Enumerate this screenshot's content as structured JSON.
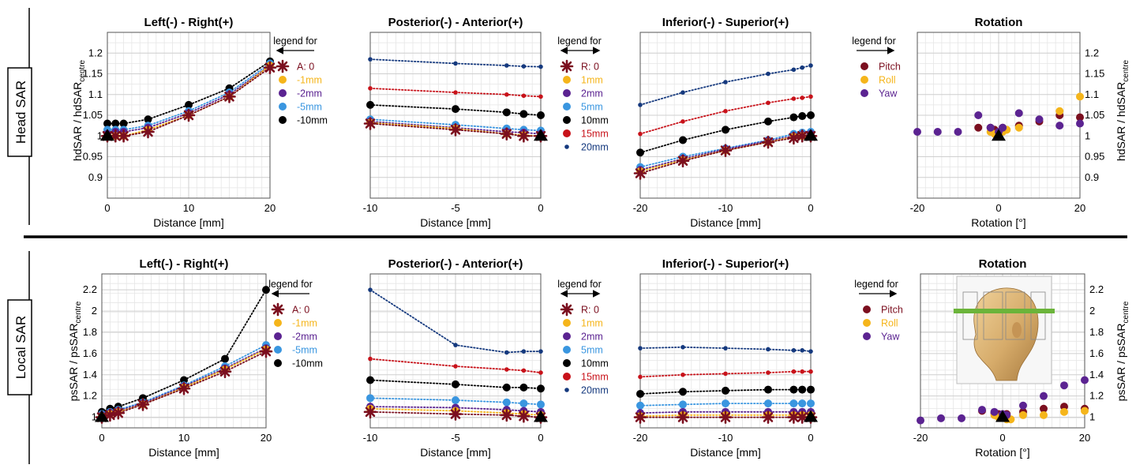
{
  "rows": [
    {
      "label": "Head SAR"
    },
    {
      "label": "Local SAR"
    }
  ],
  "ylabels": {
    "head": "hdSAR / hdSAR",
    "head_sub": "centre",
    "local": "psSAR / psSAR",
    "local_sub": "centre"
  },
  "legend_title": "legend for",
  "colors": {
    "0": "#7b0f1f",
    "1": "#f5b51b",
    "2": "#5b2391",
    "5": "#3a96e0",
    "10": "#000000",
    "15": "#c8121a",
    "20": "#15397e"
  },
  "rot_colors": {
    "Pitch": "#7b0f1f",
    "Roll": "#f5b51b",
    "Yaw": "#5b2391"
  },
  "chart_data": [
    {
      "type": "line",
      "row": 0,
      "title": "Left(-) - Right(+)",
      "xlabel": "Distance [mm]",
      "xlim": [
        0,
        20
      ],
      "ylim": [
        0.85,
        1.25
      ],
      "xticks": [
        "0",
        "10",
        "20"
      ],
      "yticks": [
        "0.9",
        "0.95",
        "1",
        "1.05",
        "1.1",
        "1.15",
        "1.2"
      ],
      "legend": {
        "side": "right",
        "arrow": "left",
        "entries": [
          {
            "label": "A: 0",
            "ckey": "0",
            "marker": "star"
          },
          {
            "label": "-1mm",
            "ckey": "1",
            "marker": "dot"
          },
          {
            "label": "-2mm",
            "ckey": "2",
            "marker": "dot"
          },
          {
            "label": "-5mm",
            "ckey": "5",
            "marker": "dot"
          },
          {
            "label": "-10mm",
            "ckey": "10",
            "marker": "dot"
          }
        ]
      },
      "x": [
        0,
        1,
        2,
        5,
        10,
        15,
        20
      ],
      "series": [
        {
          "ckey": "10",
          "marker": "dot",
          "values": [
            1.03,
            1.03,
            1.03,
            1.04,
            1.075,
            1.115,
            1.18
          ]
        },
        {
          "ckey": "5",
          "marker": "dot",
          "values": [
            1.015,
            1.015,
            1.015,
            1.025,
            1.06,
            1.105,
            1.175
          ]
        },
        {
          "ckey": "2",
          "marker": "dot",
          "values": [
            1.005,
            1.01,
            1.01,
            1.02,
            1.055,
            1.1,
            1.17
          ]
        },
        {
          "ckey": "1",
          "marker": "dot",
          "values": [
            1.0,
            1.0,
            1.0,
            1.015,
            1.05,
            1.095,
            1.17
          ]
        },
        {
          "ckey": "0",
          "marker": "star",
          "values": [
            1.0,
            1.0,
            1.0,
            1.01,
            1.05,
            1.095,
            1.165
          ]
        }
      ],
      "origin": {
        "x": 0,
        "y": 1.0
      }
    },
    {
      "type": "line",
      "row": 0,
      "title": "Posterior(-) - Anterior(+)",
      "xlabel": "Distance [mm]",
      "xlim": [
        -10,
        0
      ],
      "ylim": [
        0.85,
        1.25
      ],
      "xticks": [
        "-10",
        "-5",
        "0"
      ],
      "yticks": [],
      "legend": {
        "side": "right",
        "arrow": "both",
        "entries": [
          {
            "label": "R: 0",
            "ckey": "0",
            "marker": "star"
          },
          {
            "label": "1mm",
            "ckey": "1",
            "marker": "dot"
          },
          {
            "label": "2mm",
            "ckey": "2",
            "marker": "dot"
          },
          {
            "label": "5mm",
            "ckey": "5",
            "marker": "dot"
          },
          {
            "label": "10mm",
            "ckey": "10",
            "marker": "dot"
          },
          {
            "label": "15mm",
            "ckey": "15",
            "marker": "dot"
          },
          {
            "label": "20mm",
            "ckey": "20",
            "marker": "small"
          }
        ]
      },
      "x": [
        -10,
        -5,
        -2,
        -1,
        0
      ],
      "series": [
        {
          "ckey": "20",
          "marker": "small",
          "values": [
            1.185,
            1.175,
            1.17,
            1.168,
            1.167
          ]
        },
        {
          "ckey": "15",
          "marker": "small",
          "values": [
            1.115,
            1.105,
            1.1,
            1.097,
            1.095
          ]
        },
        {
          "ckey": "10",
          "marker": "dot",
          "values": [
            1.075,
            1.065,
            1.057,
            1.053,
            1.05
          ]
        },
        {
          "ckey": "5",
          "marker": "dot",
          "values": [
            1.04,
            1.027,
            1.018,
            1.015,
            1.013
          ]
        },
        {
          "ckey": "2",
          "marker": "dot",
          "values": [
            1.035,
            1.02,
            1.01,
            1.008,
            1.005
          ]
        },
        {
          "ckey": "1",
          "marker": "dot",
          "values": [
            1.032,
            1.018,
            1.005,
            1.002,
            1.0
          ]
        },
        {
          "ckey": "0",
          "marker": "star",
          "values": [
            1.03,
            1.015,
            1.005,
            1.0,
            1.0
          ]
        }
      ],
      "origin": {
        "x": 0,
        "y": 1.0
      }
    },
    {
      "type": "line",
      "row": 0,
      "title": "Inferior(-) - Superior(+)",
      "xlabel": "Distance [mm]",
      "xlim": [
        -20,
        0
      ],
      "ylim": [
        0.85,
        1.25
      ],
      "xticks": [
        "-20",
        "-10",
        "0"
      ],
      "yticks": [],
      "legend": null,
      "x": [
        -20,
        -15,
        -10,
        -5,
        -2,
        -1,
        0
      ],
      "series": [
        {
          "ckey": "20",
          "marker": "small",
          "values": [
            1.075,
            1.105,
            1.13,
            1.15,
            1.16,
            1.165,
            1.17
          ]
        },
        {
          "ckey": "15",
          "marker": "small",
          "values": [
            1.005,
            1.035,
            1.06,
            1.08,
            1.09,
            1.092,
            1.095
          ]
        },
        {
          "ckey": "10",
          "marker": "dot",
          "values": [
            0.96,
            0.99,
            1.015,
            1.035,
            1.045,
            1.048,
            1.05
          ]
        },
        {
          "ckey": "5",
          "marker": "dot",
          "values": [
            0.925,
            0.95,
            0.97,
            0.99,
            1.005,
            1.008,
            1.01
          ]
        },
        {
          "ckey": "2",
          "marker": "dot",
          "values": [
            0.918,
            0.945,
            0.968,
            0.988,
            1.0,
            1.003,
            1.005
          ]
        },
        {
          "ckey": "1",
          "marker": "dot",
          "values": [
            0.915,
            0.942,
            0.965,
            0.985,
            0.998,
            1.0,
            1.0
          ]
        },
        {
          "ckey": "0",
          "marker": "star",
          "values": [
            0.91,
            0.94,
            0.965,
            0.985,
            0.995,
            1.0,
            1.0
          ]
        }
      ],
      "origin": {
        "x": 0,
        "y": 1.0
      }
    },
    {
      "type": "scatter",
      "row": 0,
      "title": "Rotation",
      "xlabel": "Rotation [°]",
      "xlim": [
        -20,
        20
      ],
      "ylim": [
        0.85,
        1.25
      ],
      "xticks": [
        "-20",
        "0",
        "20"
      ],
      "yticks": [
        "0.9",
        "0.95",
        "1",
        "1.05",
        "1.1",
        "1.15",
        "1.2"
      ],
      "yaxis_side": "right",
      "legend": {
        "side": "left",
        "arrow": "right",
        "entries": [
          {
            "label": "Pitch",
            "ckey": "Pitch",
            "marker": "dot"
          },
          {
            "label": "Roll",
            "ckey": "Roll",
            "marker": "dot"
          },
          {
            "label": "Yaw",
            "ckey": "Yaw",
            "marker": "dot"
          }
        ]
      },
      "series": [
        {
          "name": "Pitch",
          "x": [
            -5,
            -2,
            -1,
            1,
            5,
            10,
            15,
            20
          ],
          "values": [
            1.02,
            1.02,
            1.015,
            1.02,
            1.025,
            1.035,
            1.05,
            1.045
          ]
        },
        {
          "name": "Roll",
          "x": [
            -2,
            -1,
            1,
            2,
            5,
            15,
            20
          ],
          "values": [
            1.01,
            1.005,
            1.01,
            1.015,
            1.02,
            1.06,
            1.095
          ]
        },
        {
          "name": "Yaw",
          "x": [
            -20,
            -15,
            -10,
            -5,
            -2,
            0,
            1,
            5,
            10,
            15,
            20
          ],
          "values": [
            1.01,
            1.01,
            1.01,
            1.05,
            1.02,
            1.01,
            1.02,
            1.055,
            1.04,
            1.025,
            1.03
          ]
        }
      ],
      "origin": {
        "x": 0,
        "y": 1.0
      }
    },
    {
      "type": "line",
      "row": 1,
      "title": "Left(-) - Right(+)",
      "xlabel": "Distance [mm]",
      "xlim": [
        0,
        20
      ],
      "ylim": [
        0.9,
        2.35
      ],
      "xticks": [
        "0",
        "10",
        "20"
      ],
      "yticks": [
        "1",
        "1.2",
        "1.4",
        "1.6",
        "1.8",
        "2",
        "2.2"
      ],
      "legend": {
        "side": "right",
        "arrow": "left",
        "entries": [
          {
            "label": "A: 0",
            "ckey": "0",
            "marker": "star"
          },
          {
            "label": "-1mm",
            "ckey": "1",
            "marker": "dot"
          },
          {
            "label": "-2mm",
            "ckey": "2",
            "marker": "dot"
          },
          {
            "label": "-5mm",
            "ckey": "5",
            "marker": "dot"
          },
          {
            "label": "-10mm",
            "ckey": "10",
            "marker": "dot"
          }
        ]
      },
      "x": [
        0,
        1,
        2,
        5,
        10,
        15,
        20
      ],
      "series": [
        {
          "ckey": "10",
          "marker": "dot",
          "values": [
            1.05,
            1.08,
            1.1,
            1.18,
            1.35,
            1.55,
            2.2
          ]
        },
        {
          "ckey": "5",
          "marker": "dot",
          "values": [
            1.03,
            1.05,
            1.07,
            1.14,
            1.3,
            1.48,
            1.68
          ]
        },
        {
          "ckey": "2",
          "marker": "dot",
          "values": [
            1.02,
            1.04,
            1.06,
            1.13,
            1.29,
            1.46,
            1.65
          ]
        },
        {
          "ckey": "1",
          "marker": "dot",
          "values": [
            1.01,
            1.03,
            1.05,
            1.12,
            1.28,
            1.45,
            1.64
          ]
        },
        {
          "ckey": "0",
          "marker": "star",
          "values": [
            1.0,
            1.02,
            1.04,
            1.12,
            1.27,
            1.43,
            1.62
          ]
        }
      ],
      "origin": {
        "x": 0,
        "y": 1.0
      }
    },
    {
      "type": "line",
      "row": 1,
      "title": "Posterior(-) - Anterior(+)",
      "xlabel": "Distance [mm]",
      "xlim": [
        -10,
        0
      ],
      "ylim": [
        0.9,
        2.35
      ],
      "xticks": [
        "-10",
        "-5",
        "0"
      ],
      "yticks": [],
      "legend": {
        "side": "right",
        "arrow": "both",
        "entries": [
          {
            "label": "R: 0",
            "ckey": "0",
            "marker": "star"
          },
          {
            "label": "1mm",
            "ckey": "1",
            "marker": "dot"
          },
          {
            "label": "2mm",
            "ckey": "2",
            "marker": "dot"
          },
          {
            "label": "5mm",
            "ckey": "5",
            "marker": "dot"
          },
          {
            "label": "10mm",
            "ckey": "10",
            "marker": "dot"
          },
          {
            "label": "15mm",
            "ckey": "15",
            "marker": "dot"
          },
          {
            "label": "20mm",
            "ckey": "20",
            "marker": "small"
          }
        ]
      },
      "x": [
        -10,
        -5,
        -2,
        -1,
        0
      ],
      "series": [
        {
          "ckey": "20",
          "marker": "small",
          "values": [
            2.2,
            1.68,
            1.61,
            1.62,
            1.62
          ]
        },
        {
          "ckey": "15",
          "marker": "small",
          "values": [
            1.55,
            1.48,
            1.45,
            1.44,
            1.42
          ]
        },
        {
          "ckey": "10",
          "marker": "dot",
          "values": [
            1.35,
            1.31,
            1.28,
            1.28,
            1.27
          ]
        },
        {
          "ckey": "5",
          "marker": "dot",
          "values": [
            1.18,
            1.16,
            1.14,
            1.13,
            1.12
          ]
        },
        {
          "ckey": "2",
          "marker": "dot",
          "values": [
            1.1,
            1.09,
            1.07,
            1.06,
            1.05
          ]
        },
        {
          "ckey": "1",
          "marker": "dot",
          "values": [
            1.08,
            1.06,
            1.04,
            1.03,
            1.02
          ]
        },
        {
          "ckey": "0",
          "marker": "star",
          "values": [
            1.05,
            1.03,
            1.02,
            1.01,
            1.0
          ]
        }
      ],
      "origin": {
        "x": 0,
        "y": 1.0
      }
    },
    {
      "type": "line",
      "row": 1,
      "title": "Inferior(-) - Superior(+)",
      "xlabel": "Distance [mm]",
      "xlim": [
        -20,
        0
      ],
      "ylim": [
        0.9,
        2.35
      ],
      "xticks": [
        "-20",
        "-10",
        "0"
      ],
      "yticks": [],
      "legend": null,
      "x": [
        -20,
        -15,
        -10,
        -5,
        -2,
        -1,
        0
      ],
      "series": [
        {
          "ckey": "20",
          "marker": "small",
          "values": [
            1.65,
            1.66,
            1.65,
            1.64,
            1.63,
            1.63,
            1.62
          ]
        },
        {
          "ckey": "15",
          "marker": "small",
          "values": [
            1.38,
            1.4,
            1.41,
            1.42,
            1.43,
            1.43,
            1.43
          ]
        },
        {
          "ckey": "10",
          "marker": "dot",
          "values": [
            1.22,
            1.24,
            1.25,
            1.26,
            1.26,
            1.26,
            1.26
          ]
        },
        {
          "ckey": "5",
          "marker": "dot",
          "values": [
            1.11,
            1.12,
            1.13,
            1.13,
            1.13,
            1.13,
            1.13
          ]
        },
        {
          "ckey": "2",
          "marker": "dot",
          "values": [
            1.04,
            1.05,
            1.05,
            1.05,
            1.05,
            1.05,
            1.05
          ]
        },
        {
          "ckey": "1",
          "marker": "dot",
          "values": [
            1.01,
            1.02,
            1.02,
            1.02,
            1.02,
            1.02,
            1.02
          ]
        },
        {
          "ckey": "0",
          "marker": "star",
          "values": [
            1.0,
            1.0,
            1.0,
            1.0,
            1.0,
            1.0,
            1.0
          ]
        }
      ],
      "origin": {
        "x": 0,
        "y": 1.0
      }
    },
    {
      "type": "scatter",
      "row": 1,
      "title": "Rotation",
      "xlabel": "Rotation [°]",
      "xlim": [
        -20,
        20
      ],
      "ylim": [
        0.9,
        2.35
      ],
      "xticks": [
        "-20",
        "0",
        "20"
      ],
      "yticks": [
        "1",
        "1.2",
        "1.4",
        "1.6",
        "1.8",
        "2",
        "2.2"
      ],
      "yaxis_side": "right",
      "legend": {
        "side": "left",
        "arrow": "right",
        "entries": [
          {
            "label": "Pitch",
            "ckey": "Pitch",
            "marker": "dot"
          },
          {
            "label": "Roll",
            "ckey": "Roll",
            "marker": "dot"
          },
          {
            "label": "Yaw",
            "ckey": "Yaw",
            "marker": "dot"
          }
        ]
      },
      "series": [
        {
          "name": "Pitch",
          "x": [
            -5,
            -2,
            -1,
            1,
            5,
            10,
            15,
            20
          ],
          "values": [
            1.06,
            1.04,
            1.03,
            1.03,
            1.05,
            1.08,
            1.1,
            1.08
          ]
        },
        {
          "name": "Roll",
          "x": [
            -2,
            -1,
            1,
            2,
            5,
            10,
            15,
            20
          ],
          "values": [
            1.02,
            1.0,
            0.98,
            0.98,
            1.02,
            1.02,
            1.05,
            1.06
          ]
        },
        {
          "name": "Yaw",
          "x": [
            -20,
            -15,
            -10,
            -5,
            -2,
            0,
            1,
            5,
            10,
            15,
            20
          ],
          "values": [
            0.97,
            0.99,
            0.99,
            1.07,
            1.05,
            1.03,
            1.02,
            1.11,
            1.2,
            1.3,
            1.35
          ]
        }
      ],
      "origin": {
        "x": 0,
        "y": 1.0
      },
      "inset": "head-model"
    }
  ]
}
